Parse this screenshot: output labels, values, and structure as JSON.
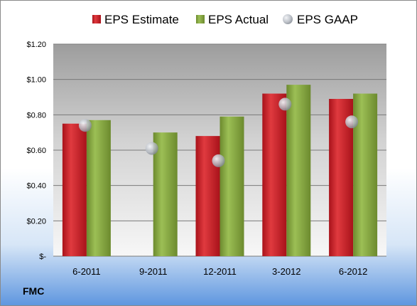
{
  "chart_data": {
    "type": "bar",
    "categories": [
      "6-2011",
      "9-2011",
      "12-2011",
      "3-2012",
      "6-2012"
    ],
    "series": [
      {
        "name": "EPS Estimate",
        "kind": "bar",
        "color": "#cc1f25",
        "values": [
          0.75,
          null,
          0.68,
          0.92,
          0.89
        ]
      },
      {
        "name": "EPS Actual",
        "kind": "bar",
        "color": "#86a83e",
        "values": [
          0.77,
          0.7,
          0.79,
          0.97,
          0.92
        ]
      },
      {
        "name": "EPS GAAP",
        "kind": "marker",
        "color": "#b0b6c0",
        "values": [
          0.74,
          0.61,
          0.54,
          0.86,
          0.76
        ]
      }
    ],
    "y_ticks": [
      "$-",
      "$0.20",
      "$0.40",
      "$0.60",
      "$0.80",
      "$1.00",
      "$1.20"
    ],
    "ylim": [
      0,
      1.2
    ],
    "legend_position": "top",
    "grid": true,
    "corner_label": "FMC"
  }
}
